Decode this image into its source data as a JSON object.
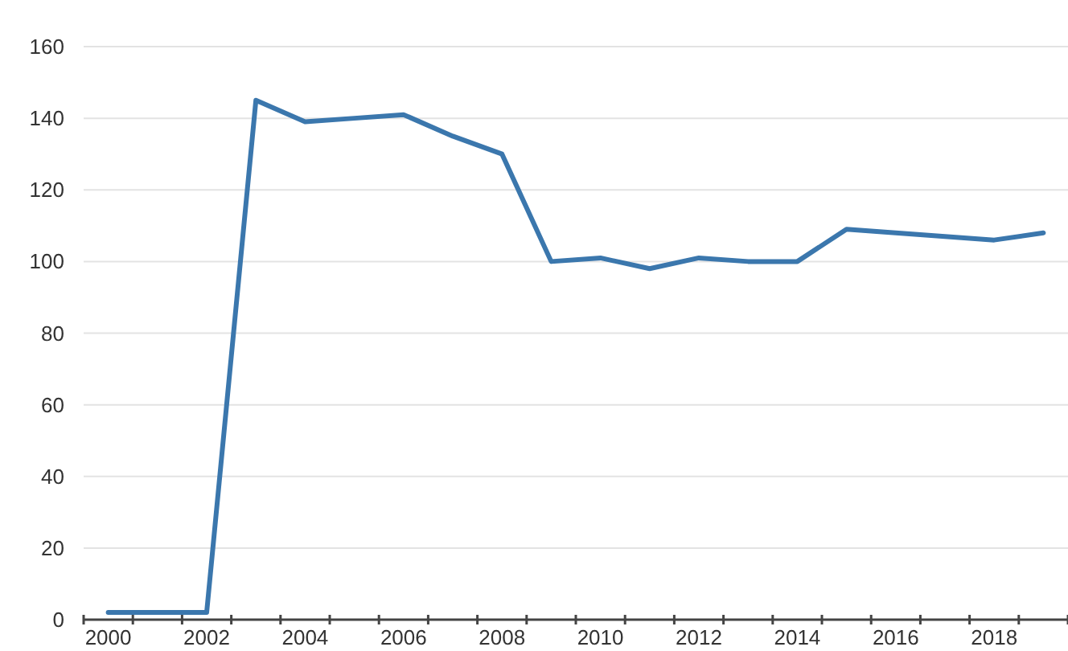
{
  "chart_data": {
    "type": "line",
    "categories": [
      "2000",
      null,
      "2002",
      null,
      "2004",
      null,
      "2006",
      null,
      "2008",
      null,
      "2010",
      null,
      "2012",
      null,
      "2014",
      null,
      "2016",
      null,
      "2018",
      null
    ],
    "series": [
      {
        "color": "#3b77ad",
        "values": [
          2,
          2,
          2,
          145,
          139,
          140,
          141,
          135,
          130,
          100,
          101,
          98,
          101,
          100,
          100,
          109,
          108,
          107,
          106,
          108
        ]
      }
    ],
    "ylim": [
      0,
      160
    ],
    "yticks": [
      0,
      20,
      40,
      60,
      80,
      100,
      120,
      140,
      160
    ],
    "grid": "y"
  }
}
